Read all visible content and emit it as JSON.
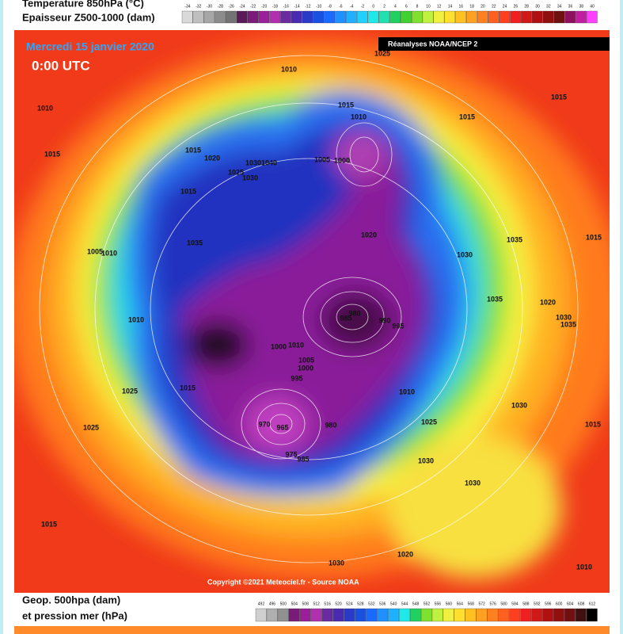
{
  "header": {
    "line1": "Temperature 850hPa (°C)",
    "line2": "Epaisseur Z500-1000 (dam)"
  },
  "temperature_scale": {
    "labels": [
      -34,
      -32,
      -30,
      -28,
      -26,
      -24,
      -22,
      -20,
      -18,
      -16,
      -14,
      -12,
      -10,
      -8,
      -6,
      -4,
      -2,
      0,
      2,
      4,
      6,
      8,
      10,
      12,
      14,
      16,
      18,
      20,
      22,
      24,
      26,
      28,
      30,
      32,
      34,
      36,
      38,
      40
    ],
    "colors": [
      "#d9d9d9",
      "#bfbfbf",
      "#a6a6a6",
      "#8c8c8c",
      "#737373",
      "#5a1a5a",
      "#7a1a7a",
      "#9a209a",
      "#b030b0",
      "#6a2aa0",
      "#4a2ab0",
      "#2a3ac8",
      "#1a50e0",
      "#1a6aff",
      "#2090ff",
      "#20b0ff",
      "#20d0ff",
      "#20e8e8",
      "#20e0b0",
      "#20d060",
      "#40d030",
      "#80e030",
      "#c0f040",
      "#f0f040",
      "#ffe030",
      "#ffc020",
      "#ffa020",
      "#ff8020",
      "#ff6020",
      "#ff4020",
      "#f02020",
      "#d01818",
      "#b01010",
      "#901010",
      "#701010",
      "#901060",
      "#c020a0",
      "#ff40ff"
    ]
  },
  "map": {
    "date": "Mercredi 15 janvier 2020",
    "time": "0:00 UTC",
    "source_box": "Réanalyses NOAA/NCEP 2",
    "copyright": "Copyright ©2021 Meteociel.fr - Source NOAA",
    "pressure_labels": [
      1025,
      1010,
      1015,
      1010,
      1015,
      1010,
      1015,
      1015,
      1015,
      1020,
      1030,
      1040,
      1025,
      1030,
      1005,
      1000,
      1015,
      1035,
      1020,
      1035,
      1015,
      1030,
      1005,
      1010,
      1035,
      1020,
      1030,
      1035,
      1010,
      985,
      980,
      990,
      995,
      1000,
      1010,
      1005,
      1000,
      995,
      1025,
      1015,
      1010,
      1030,
      1025,
      1025,
      970,
      965,
      980,
      975,
      985,
      1015,
      1030,
      1030,
      1015,
      1020,
      1030,
      1010
    ]
  },
  "footer": {
    "line1": "Geop. 500hpa (dam)",
    "line2": "et pression mer (hPa)"
  },
  "geop_scale": {
    "labels": [
      492,
      496,
      500,
      504,
      508,
      512,
      516,
      520,
      524,
      528,
      532,
      536,
      540,
      544,
      548,
      552,
      556,
      560,
      564,
      568,
      572,
      576,
      580,
      584,
      588,
      592,
      596,
      600,
      604,
      608,
      612
    ],
    "colors": [
      "#d0d0d0",
      "#b0b0b0",
      "#909090",
      "#7a1a7a",
      "#9a209a",
      "#b030b0",
      "#6a2aa0",
      "#4a2ab0",
      "#2a3ac8",
      "#1a50e0",
      "#1a6aff",
      "#2090ff",
      "#20b0ff",
      "#20e8e8",
      "#20d060",
      "#80e030",
      "#c0f040",
      "#f0f040",
      "#ffe030",
      "#ffc020",
      "#ffa020",
      "#ff8020",
      "#ff6020",
      "#ff4020",
      "#f02020",
      "#d01818",
      "#b01010",
      "#901010",
      "#701010",
      "#401010",
      "#000000"
    ]
  }
}
